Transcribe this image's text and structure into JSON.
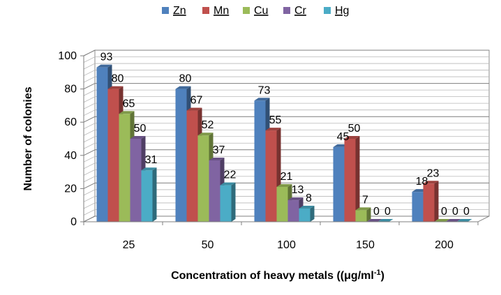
{
  "chart_data": {
    "type": "bar",
    "categories": [
      "25",
      "50",
      "100",
      "150",
      "200"
    ],
    "series": [
      {
        "name": "Zn",
        "values": [
          93,
          80,
          73,
          45,
          18
        ],
        "color": "#4F81BD"
      },
      {
        "name": "Mn",
        "values": [
          80,
          67,
          55,
          50,
          23
        ],
        "color": "#C0504D"
      },
      {
        "name": "Cu",
        "values": [
          65,
          52,
          21,
          7,
          0
        ],
        "color": "#9BBB59"
      },
      {
        "name": "Cr",
        "values": [
          50,
          37,
          13,
          0,
          0
        ],
        "color": "#8064A2"
      },
      {
        "name": "Hg",
        "values": [
          31,
          22,
          8,
          0,
          0
        ],
        "color": "#4BACC6"
      }
    ],
    "xlabel_main": "Concentration of heavy metals ((",
    "xlabel_unit": "μg/ml",
    "xlabel_sup": "-1",
    "xlabel_end": ")",
    "ylabel": "Number of colonies",
    "ylim": [
      0,
      100
    ],
    "yticks": [
      "0",
      "20",
      "40",
      "60",
      "80",
      "100"
    ],
    "grid": true,
    "style": "3d-clustered-column",
    "legend_position": "top",
    "data_labels": [
      [
        "93",
        "80",
        "73",
        "45",
        "18"
      ],
      [
        "80",
        "67",
        "55",
        "50",
        "23"
      ],
      [
        "65",
        "52",
        "21",
        "7",
        "0"
      ],
      [
        "50",
        "37",
        "13",
        "0",
        "0"
      ],
      [
        "31",
        "22",
        "8",
        "0",
        "0"
      ]
    ]
  }
}
